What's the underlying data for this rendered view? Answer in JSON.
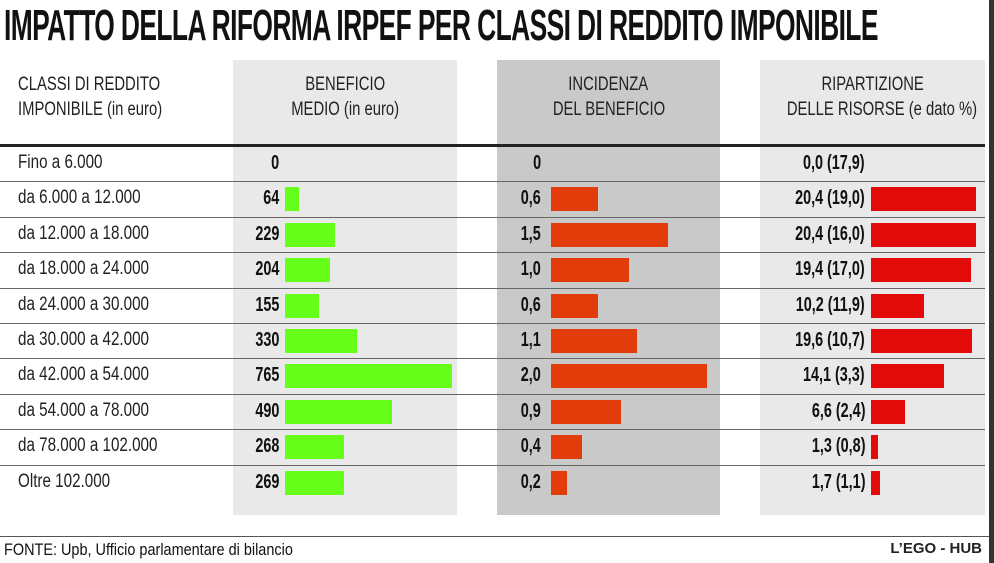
{
  "chart_data": {
    "type": "table",
    "title": "IMPATTO DELLA RIFORMA IRPEF PER CLASSI DI REDDITO IMPONIBILE",
    "columns": [
      [
        "CLASSI DI REDDITO",
        "IMPONIBILE (in euro)"
      ],
      [
        "BENEFICIO",
        "MEDIO (in euro)"
      ],
      [
        "INCIDENZA",
        "DEL BENEFICIO"
      ],
      [
        "RIPARTIZIONE",
        "DELLE RISORSE (e dato %)"
      ]
    ],
    "categories": [
      "Fino a 6.000",
      "da 6.000 a 12.000",
      "da 12.000 a 18.000",
      "da 18.000 a 24.000",
      "da 24.000 a 30.000",
      "da 30.000 a 42.000",
      "da 42.000 a 54.000",
      "da 54.000 a 78.000",
      "da 78.000 a 102.000",
      "Oltre 102.000"
    ],
    "series": [
      {
        "name": "Beneficio medio (in euro)",
        "values": [
          0,
          64,
          229,
          204,
          155,
          330,
          765,
          490,
          268,
          269
        ],
        "labels": [
          "0",
          "64",
          "229",
          "204",
          "155",
          "330",
          "765",
          "490",
          "268",
          "269"
        ],
        "color": "#66ff1a",
        "max": 765
      },
      {
        "name": "Incidenza del beneficio",
        "values": [
          0,
          0.6,
          1.5,
          1.0,
          0.6,
          1.1,
          2.0,
          0.9,
          0.4,
          0.2
        ],
        "labels": [
          "0",
          "0,6",
          "1,5",
          "1,0",
          "0,6",
          "1,1",
          "2,0",
          "0,9",
          "0,4",
          "0,2"
        ],
        "color": "#e23c0a",
        "max": 2.0
      },
      {
        "name": "Ripartizione delle risorse",
        "values": [
          0.0,
          20.4,
          20.4,
          19.4,
          10.2,
          19.6,
          14.1,
          6.6,
          1.3,
          1.7
        ],
        "labels": [
          "0,0 (17,9)",
          "20,4 (19,0)",
          "20,4 (16,0)",
          "19,4 (17,0)",
          "10,2 (11,9)",
          "19,6 (10,7)",
          "14,1 (3,3)",
          "6,6 (2,4)",
          "1,3 (0,8)",
          "1,7 (1,1)"
        ],
        "color": "#e30a0a",
        "max": 20.4
      }
    ]
  },
  "footer": {
    "source": "FONTE: Upb, Ufficio parlamentare di bilancio",
    "credit": "L’EGO - HUB"
  }
}
